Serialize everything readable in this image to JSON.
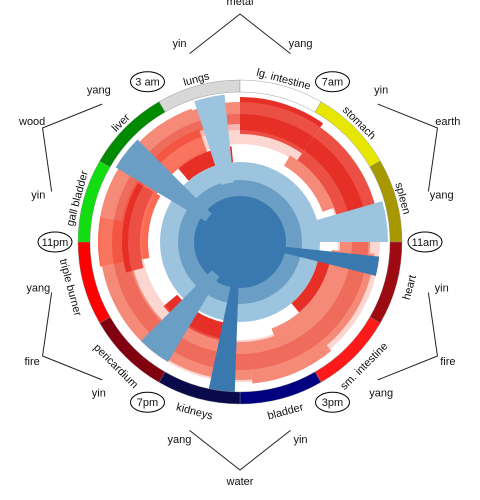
{
  "center_color": "#3a78b0",
  "ring_colors": [
    "#ffffff",
    "#f58a78",
    "#e63027",
    "#fb6b52",
    "#9cc4df",
    "#6a9ec4"
  ],
  "organs": [
    {
      "name": "lungs",
      "color": "#d8d8d8"
    },
    {
      "name": "lg. intestine",
      "color": "#ffffff"
    },
    {
      "name": "stomach",
      "color": "#e6e600"
    },
    {
      "name": "spleen",
      "color": "#a89800"
    },
    {
      "name": "heart",
      "color": "#9e0a12"
    },
    {
      "name": "sm. intestine",
      "color": "#ff1a1a"
    },
    {
      "name": "bladder",
      "color": "#000080"
    },
    {
      "name": "kidneys",
      "color": "#0a0a4a"
    },
    {
      "name": "pericardium",
      "color": "#800010"
    },
    {
      "name": "triple burner",
      "color": "#ff0000"
    },
    {
      "name": "gall bladder",
      "color": "#11dd11"
    },
    {
      "name": "liver",
      "color": "#008a00"
    }
  ],
  "times": [
    "3 am",
    "7am",
    "11am",
    "3pm",
    "7pm",
    "11pm"
  ],
  "elements": [
    {
      "name": "metal",
      "yin": "yin",
      "yang": "yang"
    },
    {
      "name": "earth",
      "yin": "yin",
      "yang": "yang"
    },
    {
      "name": "fire",
      "yin": "yin",
      "yang": "yang"
    },
    {
      "name": "water",
      "yin": "yin",
      "yang": "yang"
    },
    {
      "name": "fire",
      "yin": "yin",
      "yang": "yang"
    },
    {
      "name": "wood",
      "yin": "yin",
      "yang": "yang"
    }
  ]
}
